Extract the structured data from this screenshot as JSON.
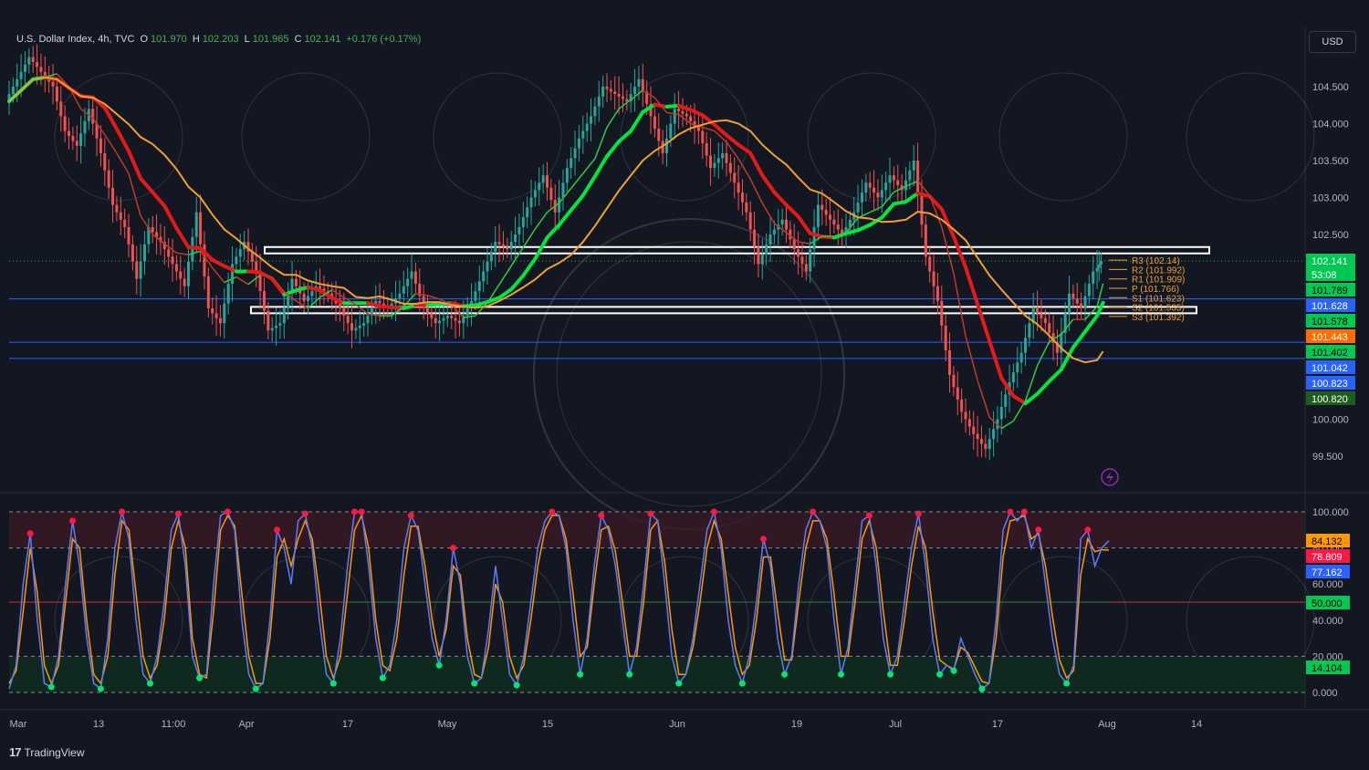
{
  "header": {
    "symbol": "U.S. Dollar Index, 4h, TVC",
    "open_label": "O",
    "open": "101.970",
    "high_label": "H",
    "high": "102.203",
    "low_label": "L",
    "low": "101.965",
    "close_label": "C",
    "close": "102.141",
    "change": "+0.176 (+0.17%)"
  },
  "currency_button": "USD",
  "branding": "TradingView",
  "colors": {
    "background": "#131722",
    "green": "#00e640",
    "red": "#e61919",
    "orange": "#f0a030",
    "blue_line": "#2962ff",
    "white_box": "#ffffff"
  },
  "chart_data": [
    {
      "type": "line",
      "title": "",
      "symbol": "U.S. Dollar Index",
      "interval": "4h",
      "y_ticks": [
        "104.500",
        "104.000",
        "103.500",
        "103.000",
        "102.500",
        "100.000",
        "99.500"
      ],
      "ylim": [
        99.2,
        104.9
      ],
      "x_ticks": [
        "Mar",
        "13",
        "11:00",
        "Apr",
        "17",
        "May",
        "15",
        "Jun",
        "19",
        "Jul",
        "17",
        "Aug",
        "14"
      ],
      "price_path": [
        [
          0,
          104.3
        ],
        [
          2,
          104.6
        ],
        [
          4,
          104.9
        ],
        [
          6,
          104.7
        ],
        [
          8,
          104.5
        ],
        [
          10,
          103.9
        ],
        [
          12,
          103.7
        ],
        [
          14,
          104.2
        ],
        [
          16,
          103.6
        ],
        [
          18,
          102.9
        ],
        [
          20,
          102.6
        ],
        [
          22,
          101.9
        ],
        [
          24,
          102.6
        ],
        [
          26,
          102.4
        ],
        [
          28,
          102.1
        ],
        [
          30,
          101.8
        ],
        [
          32,
          102.8
        ],
        [
          34,
          101.5
        ],
        [
          36,
          101.3
        ],
        [
          38,
          102.1
        ],
        [
          40,
          102.4
        ],
        [
          42,
          102.0
        ],
        [
          44,
          101.2
        ],
        [
          46,
          101.3
        ],
        [
          48,
          101.9
        ],
        [
          50,
          101.6
        ],
        [
          52,
          101.8
        ],
        [
          54,
          101.7
        ],
        [
          56,
          101.5
        ],
        [
          58,
          101.2
        ],
        [
          60,
          101.3
        ],
        [
          62,
          101.6
        ],
        [
          64,
          101.5
        ],
        [
          66,
          101.7
        ],
        [
          68,
          102.0
        ],
        [
          70,
          101.5
        ],
        [
          72,
          101.3
        ],
        [
          74,
          101.4
        ],
        [
          76,
          101.3
        ],
        [
          78,
          101.6
        ],
        [
          80,
          102.0
        ],
        [
          82,
          102.4
        ],
        [
          84,
          102.3
        ],
        [
          86,
          102.6
        ],
        [
          88,
          103.0
        ],
        [
          90,
          103.3
        ],
        [
          92,
          102.8
        ],
        [
          94,
          103.4
        ],
        [
          96,
          103.8
        ],
        [
          98,
          104.1
        ],
        [
          100,
          104.5
        ],
        [
          102,
          104.4
        ],
        [
          104,
          104.3
        ],
        [
          106,
          104.6
        ],
        [
          108,
          104.1
        ],
        [
          110,
          103.6
        ],
        [
          112,
          104.2
        ],
        [
          114,
          104.1
        ],
        [
          116,
          103.9
        ],
        [
          118,
          103.4
        ],
        [
          120,
          103.6
        ],
        [
          122,
          103.2
        ],
        [
          124,
          102.8
        ],
        [
          126,
          102.1
        ],
        [
          128,
          102.5
        ],
        [
          130,
          102.7
        ],
        [
          132,
          102.3
        ],
        [
          134,
          102.0
        ],
        [
          136,
          102.9
        ],
        [
          138,
          102.7
        ],
        [
          140,
          102.5
        ],
        [
          142,
          102.8
        ],
        [
          144,
          103.2
        ],
        [
          146,
          103.0
        ],
        [
          148,
          103.3
        ],
        [
          150,
          103.1
        ],
        [
          152,
          103.5
        ],
        [
          154,
          102.2
        ],
        [
          156,
          101.6
        ],
        [
          158,
          100.6
        ],
        [
          160,
          100.1
        ],
        [
          162,
          99.8
        ],
        [
          164,
          99.6
        ],
        [
          166,
          100.0
        ],
        [
          168,
          100.5
        ],
        [
          170,
          100.9
        ],
        [
          172,
          101.5
        ],
        [
          174,
          101.3
        ],
        [
          176,
          100.9
        ],
        [
          178,
          101.7
        ],
        [
          180,
          101.5
        ],
        [
          182,
          102.0
        ],
        [
          183,
          102.14
        ]
      ],
      "series": [
        {
          "name": "",
          "color": "#00e640"
        },
        {
          "name": "",
          "color": "#e61919"
        },
        {
          "name": "",
          "color": "#f0a030"
        }
      ],
      "pivot_levels": [
        {
          "label": "R3 (102.14)",
          "value": 102.14
        },
        {
          "label": "R2 (101.992)",
          "value": 101.992
        },
        {
          "label": "R1 (101.909)",
          "value": 101.909
        },
        {
          "label": "P (101.766)",
          "value": 101.766
        },
        {
          "label": "S1 (101.623)",
          "value": 101.623
        },
        {
          "label": "S2 (101.535)",
          "value": 101.535
        },
        {
          "label": "S3 (101.392)",
          "value": 101.392
        }
      ],
      "horizontal_lines": [
        101.628,
        101.042,
        100.823
      ],
      "zones": [
        {
          "from": 102.26,
          "to": 102.33
        },
        {
          "from": 101.44,
          "to": 101.52
        }
      ],
      "price_labels": [
        {
          "text": "102.141",
          "value": 102.141,
          "color": "#00c853",
          "fg": "#ffffff"
        },
        {
          "text": "53:08",
          "value": 102.0,
          "color": "#00c853",
          "fg": "#ffffff"
        },
        {
          "text": "101.789",
          "value": 101.789,
          "color": "#00c853",
          "fg": "#000000"
        },
        {
          "text": "101.628",
          "value": 101.628,
          "color": "#2962ff",
          "fg": "#ffffff"
        },
        {
          "text": "101.578",
          "value": 101.578,
          "color": "#00c853",
          "fg": "#000000"
        },
        {
          "text": "101.443",
          "value": 101.443,
          "color": "#ff6d00",
          "fg": "#ffffff"
        },
        {
          "text": "101.402",
          "value": 101.402,
          "color": "#00c853",
          "fg": "#000000"
        },
        {
          "text": "101.042",
          "value": 101.042,
          "color": "#2962ff",
          "fg": "#ffffff"
        },
        {
          "text": "100.823",
          "value": 100.823,
          "color": "#2962ff",
          "fg": "#ffffff"
        },
        {
          "text": "100.820",
          "value": 100.82,
          "color": "#1b5e20",
          "fg": "#ffffff"
        }
      ]
    },
    {
      "type": "line",
      "title": "",
      "y_ticks": [
        "100.000",
        "80.000",
        "60.000",
        "40.000",
        "20.000",
        "0.000"
      ],
      "ylim": [
        0,
        100
      ],
      "levels": [
        100,
        80,
        50,
        20,
        0
      ],
      "values_k": [
        2,
        15,
        60,
        88,
        40,
        5,
        3,
        20,
        60,
        95,
        70,
        30,
        5,
        2,
        30,
        80,
        100,
        85,
        40,
        10,
        5,
        20,
        50,
        90,
        99,
        70,
        20,
        8,
        10,
        60,
        98,
        100,
        90,
        40,
        10,
        2,
        5,
        40,
        90,
        80,
        60,
        95,
        99,
        80,
        40,
        10,
        5,
        30,
        70,
        100,
        100,
        70,
        30,
        8,
        15,
        40,
        80,
        98,
        90,
        60,
        30,
        15,
        40,
        80,
        60,
        20,
        5,
        8,
        35,
        70,
        40,
        10,
        4,
        20,
        50,
        80,
        95,
        100,
        98,
        80,
        40,
        10,
        30,
        70,
        98,
        90,
        70,
        40,
        10,
        25,
        60,
        99,
        95,
        60,
        20,
        5,
        10,
        30,
        60,
        90,
        100,
        80,
        40,
        15,
        5,
        20,
        50,
        85,
        70,
        30,
        10,
        20,
        60,
        90,
        100,
        95,
        80,
        40,
        10,
        25,
        60,
        95,
        98,
        70,
        30,
        10,
        20,
        50,
        80,
        99,
        70,
        30,
        10,
        15,
        12,
        30,
        20,
        10,
        2,
        5,
        40,
        90,
        100,
        95,
        100,
        80,
        90,
        60,
        30,
        10,
        5,
        15,
        85,
        90,
        70,
        80,
        84
      ],
      "values_d": [
        5,
        12,
        45,
        80,
        55,
        15,
        5,
        15,
        50,
        85,
        80,
        40,
        10,
        5,
        20,
        65,
        95,
        90,
        55,
        20,
        8,
        15,
        40,
        80,
        95,
        80,
        30,
        10,
        8,
        45,
        90,
        98,
        92,
        55,
        20,
        5,
        5,
        30,
        75,
        85,
        70,
        85,
        95,
        85,
        55,
        20,
        8,
        20,
        55,
        90,
        98,
        80,
        40,
        15,
        12,
        30,
        65,
        92,
        92,
        70,
        40,
        20,
        35,
        70,
        65,
        30,
        10,
        8,
        25,
        60,
        50,
        20,
        8,
        15,
        40,
        70,
        90,
        98,
        98,
        85,
        55,
        20,
        25,
        60,
        90,
        92,
        78,
        50,
        20,
        20,
        50,
        90,
        95,
        72,
        35,
        10,
        10,
        25,
        50,
        80,
        95,
        85,
        55,
        25,
        10,
        15,
        40,
        75,
        75,
        45,
        18,
        18,
        50,
        80,
        95,
        95,
        85,
        55,
        20,
        20,
        50,
        85,
        95,
        80,
        45,
        15,
        15,
        40,
        70,
        92,
        80,
        45,
        18,
        15,
        13,
        25,
        22,
        14,
        6,
        5,
        30,
        75,
        95,
        96,
        98,
        85,
        88,
        70,
        42,
        18,
        8,
        12,
        65,
        85,
        78,
        79,
        78.8
      ],
      "price_labels": [
        {
          "text": "84.132",
          "value": 84.132,
          "color": "#ff9800",
          "fg": "#000000"
        },
        {
          "text": "78.809",
          "value": 78.809,
          "color": "#ff1744",
          "fg": "#ffffff"
        },
        {
          "text": "77.162",
          "value": 77.162,
          "color": "#2962ff",
          "fg": "#ffffff"
        },
        {
          "text": "50.000",
          "value": 50.0,
          "color": "#00c853",
          "fg": "#000000"
        },
        {
          "text": "14.104",
          "value": 14.104,
          "color": "#00c853",
          "fg": "#000000"
        }
      ]
    }
  ]
}
